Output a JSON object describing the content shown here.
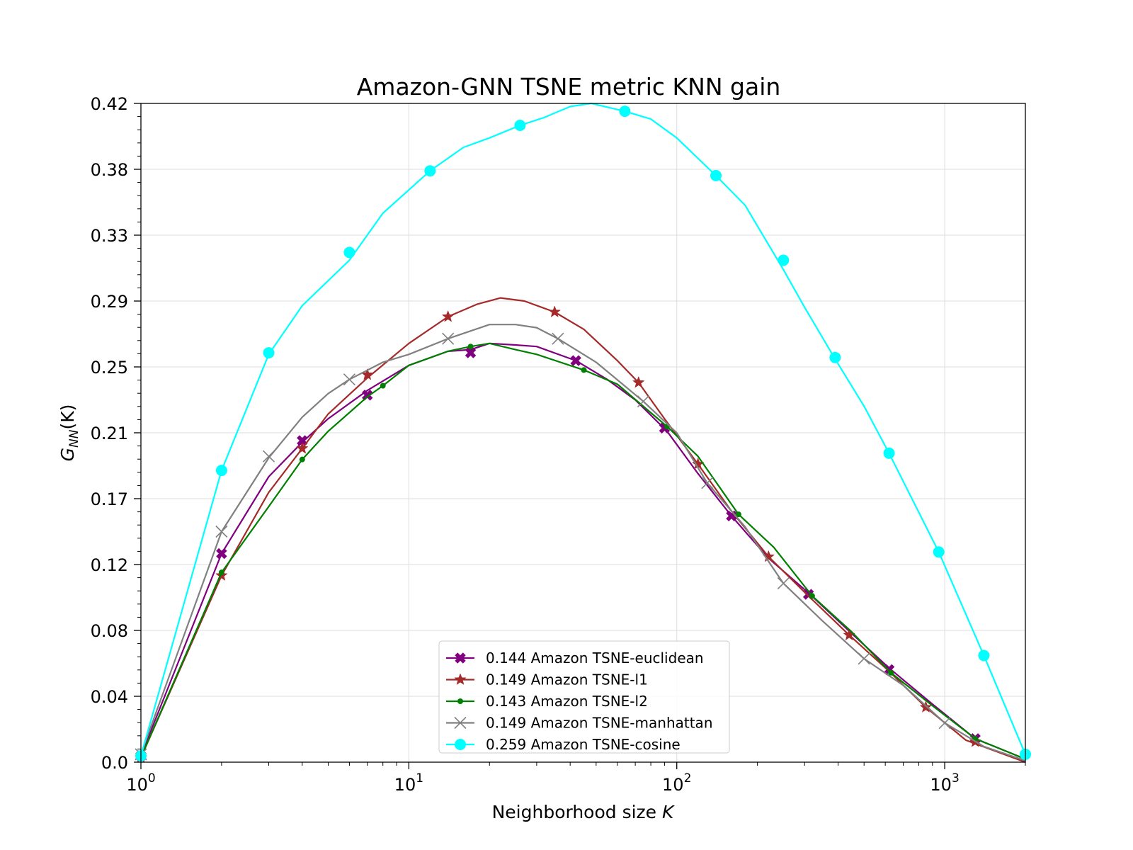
{
  "chart_data": {
    "type": "line",
    "title": "Amazon-GNN TSNE metric KNN gain",
    "xlabel_prefix": "Neighborhood size ",
    "xlabel_var": "K",
    "ylabel_main": "G",
    "ylabel_sub": "NN",
    "ylabel_arg": "(K)",
    "xscale": "log",
    "xlim": [
      1,
      2000
    ],
    "ylim": [
      0.0,
      0.42
    ],
    "grid": true,
    "legend_position": "lower-center",
    "x_ticks": [
      {
        "value": 1,
        "base": "10",
        "exp": "0"
      },
      {
        "value": 10,
        "base": "10",
        "exp": "1"
      },
      {
        "value": 100,
        "base": "10",
        "exp": "2"
      },
      {
        "value": 1000,
        "base": "10",
        "exp": "3"
      }
    ],
    "y_ticks": [
      {
        "value": 0.0,
        "label": "0.0"
      },
      {
        "value": 0.042,
        "label": "0.04"
      },
      {
        "value": 0.084,
        "label": "0.08"
      },
      {
        "value": 0.126,
        "label": "0.12"
      },
      {
        "value": 0.168,
        "label": "0.17"
      },
      {
        "value": 0.21,
        "label": "0.21"
      },
      {
        "value": 0.252,
        "label": "0.25"
      },
      {
        "value": 0.294,
        "label": "0.29"
      },
      {
        "value": 0.336,
        "label": "0.33"
      },
      {
        "value": 0.378,
        "label": "0.38"
      },
      {
        "value": 0.42,
        "label": "0.42"
      }
    ],
    "series": [
      {
        "name": "0.144 Amazon TSNE-euclidean",
        "color": "#800080",
        "marker": "X",
        "x": [
          1,
          2,
          3,
          4,
          5,
          7,
          10,
          14,
          17,
          20,
          25,
          30,
          42,
          55,
          70,
          92,
          120,
          160,
          220,
          310,
          450,
          620,
          900,
          1300,
          2000
        ],
        "y": [
          0.004,
          0.133,
          0.182,
          0.204,
          0.219,
          0.237,
          0.253,
          0.262,
          0.263,
          0.267,
          0.266,
          0.265,
          0.256,
          0.244,
          0.231,
          0.211,
          0.184,
          0.157,
          0.13,
          0.108,
          0.082,
          0.06,
          0.037,
          0.015,
          0.002
        ],
        "markers_x": [
          1,
          2,
          4,
          7,
          17,
          42,
          90,
          160,
          310,
          620,
          1300
        ],
        "markers_y": [
          0.004,
          0.133,
          0.205,
          0.234,
          0.261,
          0.256,
          0.213,
          0.157,
          0.107,
          0.059,
          0.015
        ]
      },
      {
        "name": "0.149 Amazon TSNE-l1",
        "color": "#a52a2a",
        "marker": "star",
        "x": [
          1,
          2,
          3,
          4,
          5,
          7,
          10,
          14,
          18,
          22,
          27,
          35,
          45,
          60,
          72,
          90,
          120,
          160,
          220,
          310,
          440,
          620,
          850,
          1200,
          2000
        ],
        "y": [
          0.003,
          0.119,
          0.172,
          0.2,
          0.222,
          0.245,
          0.267,
          0.284,
          0.292,
          0.296,
          0.294,
          0.287,
          0.276,
          0.256,
          0.242,
          0.219,
          0.19,
          0.16,
          0.131,
          0.106,
          0.081,
          0.058,
          0.035,
          0.014,
          0.0
        ],
        "markers_x": [
          1,
          2,
          4,
          7,
          14,
          35,
          72,
          120,
          220,
          440,
          850,
          1300
        ],
        "markers_y": [
          0.003,
          0.119,
          0.2,
          0.247,
          0.284,
          0.287,
          0.242,
          0.19,
          0.131,
          0.081,
          0.035,
          0.013
        ]
      },
      {
        "name": "0.143 Amazon TSNE-l2",
        "color": "#008000",
        "marker": "dot",
        "x": [
          1,
          2,
          3,
          4,
          5,
          7,
          8,
          10,
          14,
          17,
          20,
          25,
          30,
          45,
          60,
          92,
          120,
          170,
          230,
          320,
          450,
          630,
          900,
          1300,
          2000
        ],
        "y": [
          0.003,
          0.121,
          0.163,
          0.193,
          0.211,
          0.233,
          0.24,
          0.253,
          0.262,
          0.265,
          0.267,
          0.263,
          0.26,
          0.25,
          0.241,
          0.214,
          0.195,
          0.158,
          0.137,
          0.106,
          0.083,
          0.057,
          0.036,
          0.015,
          0.002
        ],
        "markers_x": [
          1,
          2,
          4,
          8,
          17,
          45,
          92,
          170,
          320,
          630,
          1300
        ],
        "markers_y": [
          0.003,
          0.121,
          0.193,
          0.24,
          0.265,
          0.25,
          0.214,
          0.158,
          0.106,
          0.057,
          0.015
        ]
      },
      {
        "name": "0.149 Amazon TSNE-manhattan",
        "color": "#808080",
        "marker": "x",
        "x": [
          1,
          2,
          3,
          4,
          5,
          6,
          8,
          10,
          14,
          20,
          25,
          30,
          36,
          50,
          75,
          100,
          130,
          180,
          250,
          350,
          500,
          700,
          1000,
          1400,
          2000
        ],
        "y": [
          0.005,
          0.147,
          0.194,
          0.22,
          0.235,
          0.244,
          0.255,
          0.26,
          0.27,
          0.279,
          0.279,
          0.277,
          0.27,
          0.255,
          0.23,
          0.21,
          0.178,
          0.15,
          0.114,
          0.09,
          0.066,
          0.049,
          0.025,
          0.01,
          0.001
        ],
        "markers_x": [
          1,
          2,
          3,
          6,
          14,
          36,
          75,
          130,
          250,
          500,
          1000
        ],
        "markers_y": [
          0.005,
          0.147,
          0.195,
          0.244,
          0.27,
          0.27,
          0.23,
          0.178,
          0.114,
          0.066,
          0.025
        ]
      },
      {
        "name": "0.259 Amazon TSNE-cosine",
        "color": "#00ffff",
        "marker": "circle",
        "x": [
          1,
          2,
          3,
          4,
          6,
          8,
          12,
          16,
          20,
          26,
          32,
          40,
          48,
          64,
          80,
          100,
          140,
          180,
          250,
          300,
          390,
          500,
          620,
          950,
          1400,
          2000
        ],
        "y": [
          0.004,
          0.186,
          0.26,
          0.291,
          0.32,
          0.35,
          0.377,
          0.392,
          0.398,
          0.406,
          0.411,
          0.418,
          0.42,
          0.415,
          0.41,
          0.398,
          0.374,
          0.355,
          0.314,
          0.29,
          0.257,
          0.227,
          0.197,
          0.134,
          0.068,
          0.005
        ],
        "markers_x": [
          1,
          2,
          3,
          6,
          12,
          26,
          64,
          140,
          250,
          390,
          620,
          950,
          1400,
          2000
        ],
        "markers_y": [
          0.004,
          0.186,
          0.261,
          0.325,
          0.377,
          0.406,
          0.415,
          0.374,
          0.32,
          0.258,
          0.197,
          0.134,
          0.068,
          0.005
        ]
      }
    ]
  }
}
